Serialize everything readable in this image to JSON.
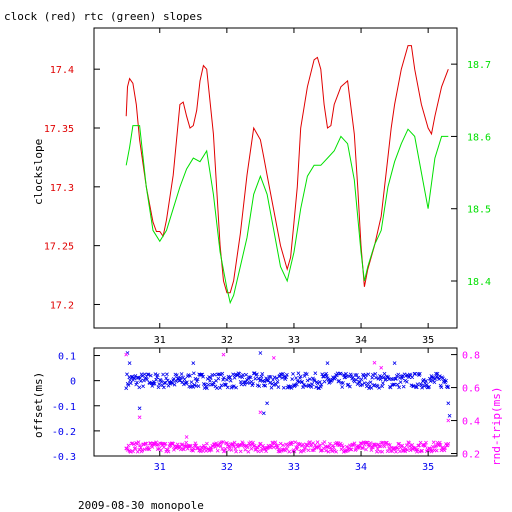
{
  "colors": {
    "clock": "#e00000",
    "rtc": "#00e000",
    "offset": "#0000ee",
    "rndtrip": "#ff00ff",
    "frame": "#000000"
  },
  "chart_data": [
    {
      "type": "line",
      "title": "clock (red) rtc (green) slopes",
      "xlabel": "",
      "ylabel": "clockslope",
      "y2label": "",
      "xlim": [
        30.02,
        35.43
      ],
      "ylim": [
        17.18,
        17.435
      ],
      "y2lim": [
        18.335,
        18.75
      ],
      "xticks": [
        "31",
        "32",
        "33",
        "34",
        "35"
      ],
      "yticks": [
        "17.2",
        "17.25",
        "17.3",
        "17.35",
        "17.4"
      ],
      "y2ticks": [
        "18.4",
        "18.5",
        "18.6",
        "18.7"
      ],
      "grid": false,
      "series": [
        {
          "name": "clock",
          "axis": "left",
          "x": [
            30.5,
            30.52,
            30.55,
            30.6,
            30.65,
            30.7,
            30.8,
            30.9,
            30.95,
            31.0,
            31.05,
            31.1,
            31.2,
            31.3,
            31.35,
            31.4,
            31.45,
            31.5,
            31.55,
            31.6,
            31.65,
            31.7,
            31.8,
            31.9,
            31.95,
            32.0,
            32.05,
            32.1,
            32.2,
            32.3,
            32.4,
            32.5,
            32.55,
            32.6,
            32.7,
            32.8,
            32.9,
            32.95,
            33.0,
            33.05,
            33.1,
            33.2,
            33.3,
            33.35,
            33.4,
            33.45,
            33.5,
            33.55,
            33.6,
            33.7,
            33.8,
            33.9,
            33.95,
            34.0,
            34.05,
            34.1,
            34.2,
            34.3,
            34.4,
            34.45,
            34.5,
            34.6,
            34.7,
            34.75,
            34.8,
            34.9,
            35.0,
            35.05,
            35.1,
            35.2,
            35.3
          ],
          "values": [
            17.36,
            17.385,
            17.392,
            17.388,
            17.37,
            17.34,
            17.3,
            17.27,
            17.262,
            17.262,
            17.258,
            17.272,
            17.31,
            17.37,
            17.372,
            17.36,
            17.35,
            17.352,
            17.365,
            17.39,
            17.403,
            17.4,
            17.345,
            17.25,
            17.22,
            17.21,
            17.21,
            17.22,
            17.26,
            17.31,
            17.35,
            17.34,
            17.325,
            17.31,
            17.28,
            17.25,
            17.23,
            17.24,
            17.27,
            17.3,
            17.35,
            17.385,
            17.408,
            17.41,
            17.4,
            17.37,
            17.35,
            17.352,
            17.37,
            17.385,
            17.39,
            17.345,
            17.3,
            17.25,
            17.215,
            17.23,
            17.25,
            17.275,
            17.325,
            17.35,
            17.37,
            17.4,
            17.42,
            17.42,
            17.4,
            17.37,
            17.35,
            17.345,
            17.36,
            17.385,
            17.4
          ]
        },
        {
          "name": "rtc",
          "axis": "right",
          "x": [
            30.5,
            30.55,
            30.6,
            30.7,
            30.8,
            30.9,
            31.0,
            31.1,
            31.2,
            31.3,
            31.4,
            31.5,
            31.6,
            31.7,
            31.8,
            31.9,
            32.0,
            32.05,
            32.1,
            32.2,
            32.3,
            32.4,
            32.5,
            32.6,
            32.7,
            32.8,
            32.9,
            33.0,
            33.1,
            33.2,
            33.3,
            33.4,
            33.5,
            33.6,
            33.7,
            33.8,
            33.9,
            34.0,
            34.05,
            34.1,
            34.2,
            34.3,
            34.4,
            34.5,
            34.6,
            34.7,
            34.8,
            34.9,
            35.0,
            35.1,
            35.2,
            35.3
          ],
          "values": [
            18.56,
            18.585,
            18.615,
            18.615,
            18.53,
            18.47,
            18.455,
            18.47,
            18.5,
            18.53,
            18.555,
            18.57,
            18.565,
            18.58,
            18.52,
            18.44,
            18.39,
            18.37,
            18.38,
            18.42,
            18.46,
            18.52,
            18.545,
            18.52,
            18.47,
            18.42,
            18.4,
            18.44,
            18.5,
            18.545,
            18.56,
            18.56,
            18.57,
            18.58,
            18.6,
            18.59,
            18.54,
            18.44,
            18.4,
            18.42,
            18.45,
            18.47,
            18.53,
            18.565,
            18.59,
            18.61,
            18.6,
            18.55,
            18.5,
            18.57,
            18.6,
            18.6
          ]
        }
      ]
    },
    {
      "type": "scatter",
      "title": "",
      "xlabel": "",
      "ylabel": "offset(ms)",
      "y2label": "rnd-trip(ms)",
      "xlim": [
        30.02,
        35.43
      ],
      "ylim": [
        -0.3,
        0.13
      ],
      "y2lim": [
        0.185,
        0.84
      ],
      "xticks": [
        "31",
        "32",
        "33",
        "34",
        "35"
      ],
      "yticks": [
        "0.1",
        "0",
        "-0.1",
        "-0.2",
        "-0.3"
      ],
      "y2ticks": [
        "0.2",
        "0.4",
        "0.6",
        "0.8"
      ],
      "grid": false,
      "series": [
        {
          "name": "offset",
          "axis": "left",
          "x_range": [
            30.5,
            35.3
          ],
          "band_center": 0.0,
          "band_halfwidth": 0.03,
          "outliers": [
            [
              30.52,
              0.11
            ],
            [
              30.55,
              0.07
            ],
            [
              30.7,
              -0.11
            ],
            [
              31.5,
              0.07
            ],
            [
              32.5,
              0.11
            ],
            [
              32.55,
              -0.13
            ],
            [
              32.6,
              -0.09
            ],
            [
              33.5,
              0.07
            ],
            [
              34.5,
              0.07
            ],
            [
              35.3,
              -0.09
            ],
            [
              35.32,
              -0.14
            ]
          ]
        },
        {
          "name": "rnd-trip",
          "axis": "right",
          "x_range": [
            30.5,
            35.3
          ],
          "band_center": 0.24,
          "band_halfwidth": 0.03,
          "outliers": [
            [
              30.5,
              0.8
            ],
            [
              30.7,
              0.42
            ],
            [
              31.4,
              0.3
            ],
            [
              31.95,
              0.8
            ],
            [
              32.5,
              0.45
            ],
            [
              32.7,
              0.78
            ],
            [
              34.2,
              0.75
            ],
            [
              34.3,
              0.72
            ],
            [
              35.3,
              0.4
            ]
          ]
        }
      ]
    }
  ],
  "caption": "2009-08-30 monopole"
}
